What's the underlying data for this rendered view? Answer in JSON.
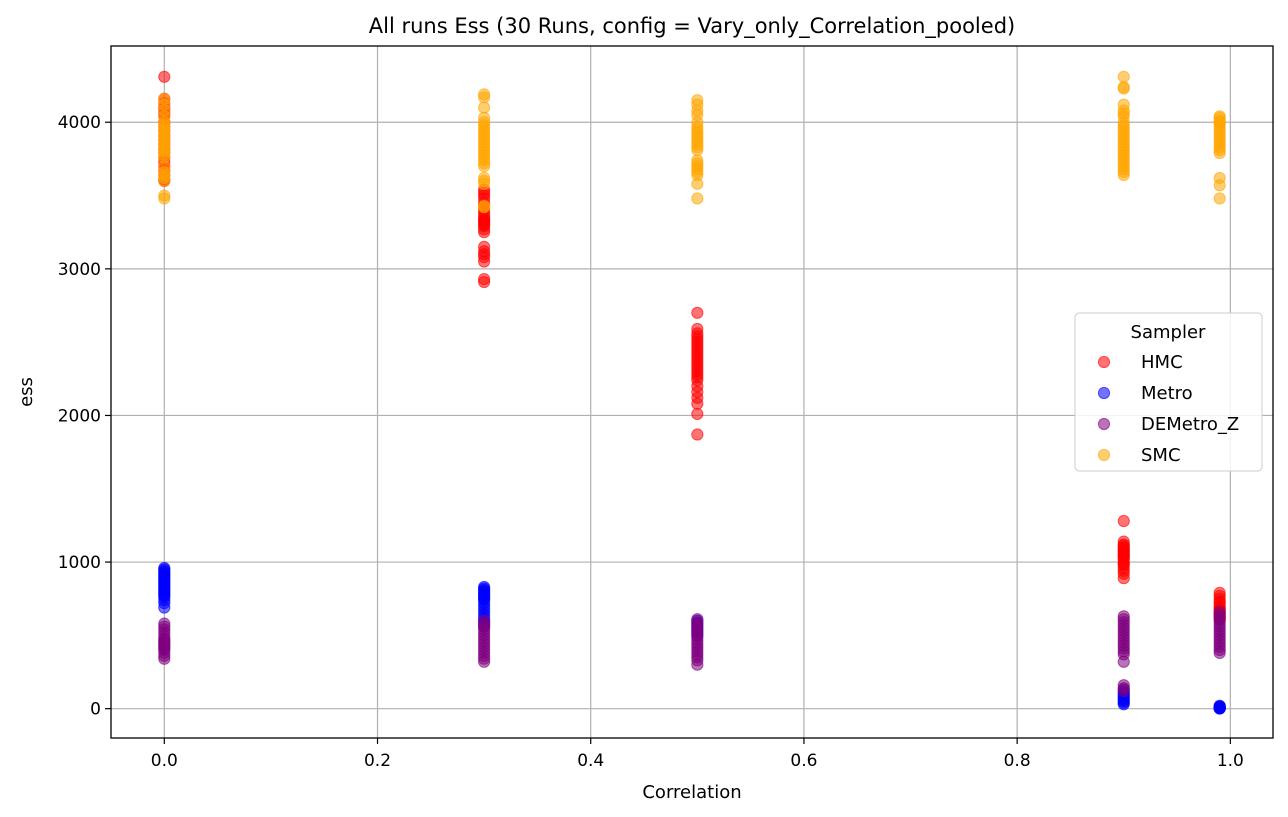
{
  "chart_data": {
    "type": "scatter",
    "title": "All runs Ess (30 Runs, config = Vary_only_Correlation_pooled)",
    "xlabel": "Correlation",
    "ylabel": "ess",
    "xlim": [
      -0.05,
      1.04
    ],
    "ylim": [
      -200,
      4520
    ],
    "xticks": [
      {
        "value": 0.0,
        "label": "0.0"
      },
      {
        "value": 0.2,
        "label": "0.2"
      },
      {
        "value": 0.4,
        "label": "0.4"
      },
      {
        "value": 0.6,
        "label": "0.6"
      },
      {
        "value": 0.8,
        "label": "0.8"
      },
      {
        "value": 1.0,
        "label": "1.0"
      }
    ],
    "yticks": [
      {
        "value": 0,
        "label": "0"
      },
      {
        "value": 1000,
        "label": "1000"
      },
      {
        "value": 2000,
        "label": "2000"
      },
      {
        "value": 3000,
        "label": "3000"
      },
      {
        "value": 4000,
        "label": "4000"
      }
    ],
    "grid": true,
    "legend": {
      "title": "Sampler",
      "placement": "center-right"
    },
    "series": [
      {
        "name": "HMC",
        "color": "#ff0000",
        "points": [
          {
            "x": 0.0,
            "y": [
              4310,
              4160,
              4130,
              4100,
              4080,
              4060,
              4040,
              4000,
              3970,
              3940,
              3910,
              3880,
              3850,
              3820,
              3790,
              3760,
              3730,
              3700,
              3670,
              3640,
              3610,
              3600
            ]
          },
          {
            "x": 0.3,
            "y": [
              3540,
              3520,
              3500,
              3480,
              3450,
              3430,
              3410,
              3390,
              3370,
              3350,
              3340,
              3330,
              3320,
              3310,
              3300,
              3290,
              3270,
              3250,
              3150,
              3120,
              3100,
              3080,
              3050,
              2930,
              2910
            ]
          },
          {
            "x": 0.5,
            "y": [
              2700,
              2590,
              2560,
              2540,
              2520,
              2500,
              2480,
              2460,
              2440,
              2420,
              2400,
              2380,
              2360,
              2340,
              2320,
              2300,
              2280,
              2260,
              2240,
              2200,
              2160,
              2120,
              2080,
              2010,
              1870
            ]
          },
          {
            "x": 0.9,
            "y": [
              1280,
              1140,
              1120,
              1110,
              1100,
              1090,
              1080,
              1070,
              1060,
              1050,
              1040,
              1030,
              1020,
              1000,
              990,
              980,
              960,
              940,
              920,
              890
            ]
          },
          {
            "x": 0.99,
            "y": [
              790,
              770,
              750,
              730,
              720,
              700,
              690,
              680,
              670,
              660,
              650,
              640,
              630,
              620,
              610
            ]
          }
        ]
      },
      {
        "name": "Metro",
        "color": "#0000ff",
        "points": [
          {
            "x": 0.0,
            "y": [
              960,
              950,
              940,
              930,
              920,
              910,
              900,
              890,
              880,
              870,
              860,
              850,
              840,
              830,
              820,
              810,
              800,
              790,
              780,
              770,
              760,
              740,
              720,
              690
            ]
          },
          {
            "x": 0.3,
            "y": [
              830,
              820,
              810,
              800,
              790,
              780,
              770,
              760,
              750,
              740,
              720,
              700,
              680,
              660,
              640,
              620,
              600,
              580,
              560
            ]
          },
          {
            "x": 0.5,
            "y": [
              600,
              580,
              560,
              540,
              520,
              500
            ]
          },
          {
            "x": 0.9,
            "y": [
              130,
              110,
              100,
              90,
              80,
              70,
              60,
              50,
              40,
              30
            ]
          },
          {
            "x": 0.99,
            "y": [
              20,
              15,
              12,
              10,
              8,
              6,
              5,
              4,
              3,
              2,
              1
            ]
          }
        ]
      },
      {
        "name": "DEMetro_Z",
        "color": "#800080",
        "points": [
          {
            "x": 0.0,
            "y": [
              580,
              560,
              540,
              520,
              500,
              480,
              470,
              460,
              450,
              440,
              430,
              420,
              410,
              400,
              380,
              360,
              340
            ]
          },
          {
            "x": 0.3,
            "y": [
              600,
              580,
              560,
              540,
              520,
              500,
              480,
              460,
              440,
              420,
              400,
              380,
              360,
              340,
              320
            ]
          },
          {
            "x": 0.5,
            "y": [
              610,
              590,
              570,
              550,
              530,
              510,
              490,
              470,
              450,
              430,
              410,
              390,
              370,
              350,
              330,
              300
            ]
          },
          {
            "x": 0.9,
            "y": [
              630,
              610,
              590,
              570,
              550,
              530,
              510,
              490,
              470,
              450,
              430,
              410,
              390,
              370,
              320,
              160,
              140,
              120
            ]
          },
          {
            "x": 0.99,
            "y": [
              660,
              640,
              620,
              600,
              580,
              560,
              540,
              520,
              500,
              480,
              460,
              440,
              420,
              400,
              380
            ]
          }
        ]
      },
      {
        "name": "SMC",
        "color": "#ffa500",
        "points": [
          {
            "x": 0.0,
            "y": [
              4160,
              4120,
              4080,
              4040,
              4000,
              3980,
              3960,
              3940,
              3920,
              3900,
              3880,
              3860,
              3840,
              3820,
              3800,
              3780,
              3760,
              3700,
              3660,
              3640,
              3620,
              3600,
              3500,
              3480
            ]
          },
          {
            "x": 0.3,
            "y": [
              4190,
              4170,
              4100,
              4030,
              4000,
              3980,
              3960,
              3940,
              3920,
              3900,
              3880,
              3860,
              3840,
              3820,
              3800,
              3780,
              3760,
              3740,
              3720,
              3700,
              3620,
              3600,
              3580,
              3430,
              3420
            ]
          },
          {
            "x": 0.5,
            "y": [
              4150,
              4120,
              4080,
              4050,
              4000,
              3970,
              3950,
              3930,
              3910,
              3890,
              3870,
              3850,
              3830,
              3810,
              3740,
              3720,
              3700,
              3680,
              3660,
              3640,
              3580,
              3480
            ]
          },
          {
            "x": 0.9,
            "y": [
              4310,
              4240,
              4230,
              4120,
              4080,
              4060,
              4040,
              4000,
              3980,
              3960,
              3940,
              3920,
              3900,
              3880,
              3860,
              3840,
              3820,
              3800,
              3780,
              3760,
              3740,
              3720,
              3700,
              3680,
              3660,
              3640
            ]
          },
          {
            "x": 0.99,
            "y": [
              4040,
              4030,
              4010,
              4000,
              3990,
              3970,
              3950,
              3930,
              3910,
              3890,
              3870,
              3850,
              3830,
              3810,
              3790,
              3620,
              3570,
              3480
            ]
          }
        ]
      }
    ]
  }
}
